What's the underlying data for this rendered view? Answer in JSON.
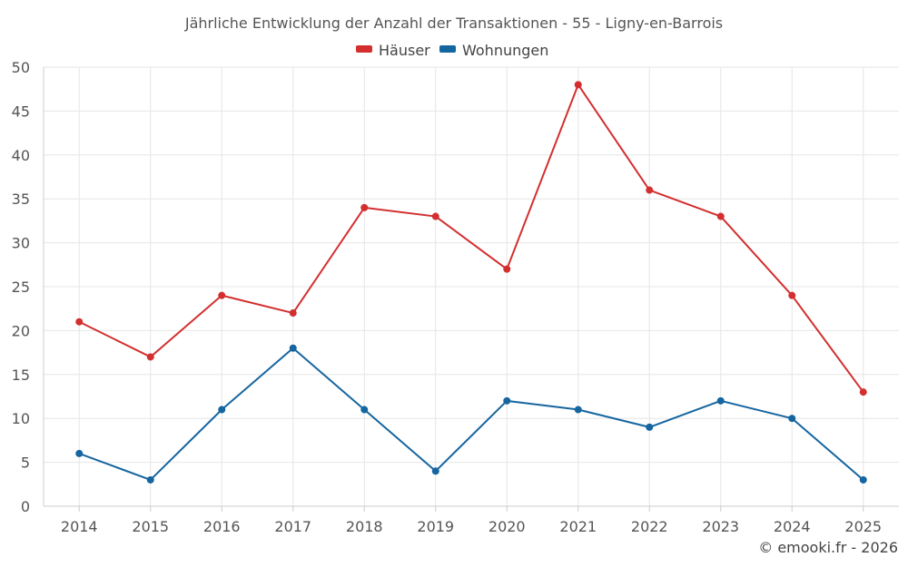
{
  "chart_data": {
    "type": "line",
    "title": "Jährliche Entwicklung der Anzahl der Transaktionen - 55 - Ligny-en-Barrois",
    "categories": [
      "2014",
      "2015",
      "2016",
      "2017",
      "2018",
      "2019",
      "2020",
      "2021",
      "2022",
      "2023",
      "2024",
      "2025"
    ],
    "series": [
      {
        "name": "Häuser",
        "color": "#d32f2f",
        "values": [
          21,
          17,
          24,
          22,
          34,
          33,
          27,
          48,
          36,
          33,
          24,
          13
        ]
      },
      {
        "name": "Wohnungen",
        "color": "#1565a0",
        "values": [
          6,
          3,
          11,
          18,
          11,
          4,
          12,
          11,
          9,
          12,
          10,
          3
        ]
      }
    ],
    "ylim": [
      0,
      50
    ],
    "yticks": [
      "0",
      "5",
      "10",
      "15",
      "20",
      "25",
      "30",
      "35",
      "40",
      "45",
      "50"
    ],
    "grid": true,
    "legend_position": "top-center"
  },
  "credit": "© emooki.fr - 2026"
}
